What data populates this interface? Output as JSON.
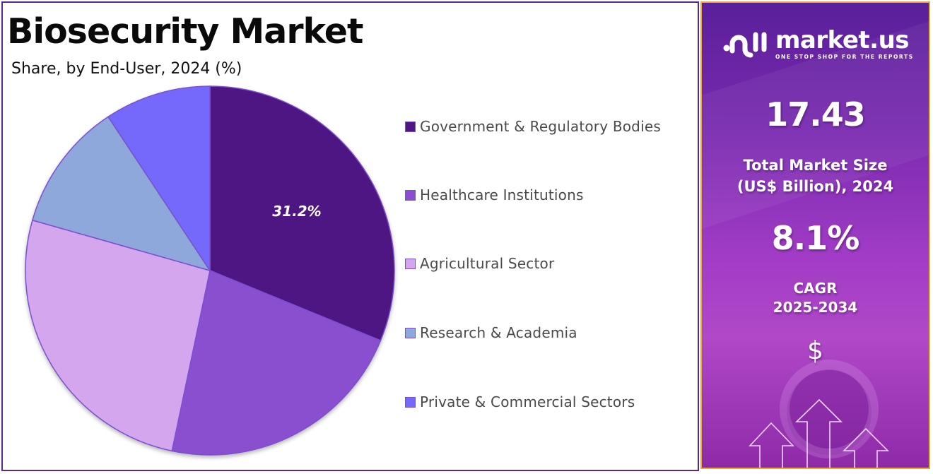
{
  "header": {
    "title": "Biosecurity Market",
    "subtitle": "Share, by End-User, 2024 (%)"
  },
  "chart_data": {
    "type": "pie",
    "title": "Biosecurity Market",
    "subtitle": "Share, by End-User, 2024 (%)",
    "categories": [
      "Government & Regulatory Bodies",
      "Healthcare Institutions",
      "Agricultural Sector",
      "Research & Academia",
      "Private & Commercial Sectors"
    ],
    "values": [
      31.2,
      22.1,
      26.1,
      11.3,
      9.3
    ],
    "colors": [
      "#4e1583",
      "#8a4fcf",
      "#d3a6ee",
      "#8ea8dc",
      "#7569fc"
    ],
    "data_labels": [
      {
        "category": "Government & Regulatory Bodies",
        "text": "31.2%"
      }
    ],
    "start_angle_deg": 0,
    "direction": "clockwise",
    "legend_position": "right"
  },
  "legend": {
    "items": [
      {
        "label": "Government & Regulatory Bodies",
        "color": "#4e1583"
      },
      {
        "label": "Healthcare Institutions",
        "color": "#8a4fcf"
      },
      {
        "label": "Agricultural Sector",
        "color": "#d3a6ee"
      },
      {
        "label": "Research & Academia",
        "color": "#8ea8dc"
      },
      {
        "label": "Private & Commercial Sectors",
        "color": "#7569fc"
      }
    ]
  },
  "pie_label": "31.2%",
  "sidebar": {
    "brand_name": "market.us",
    "brand_tagline": "ONE STOP SHOP FOR THE REPORTS",
    "market_size_value": "17.43",
    "market_size_label_line1": "Total Market Size",
    "market_size_label_line2": "(US$ Billion), 2024",
    "cagr_value": "8.1%",
    "cagr_label_line1": "CAGR",
    "cagr_label_line2": "2025-2034",
    "currency_symbol": "$",
    "icons": [
      "dollar-icon",
      "growth-arrows-icon"
    ]
  }
}
